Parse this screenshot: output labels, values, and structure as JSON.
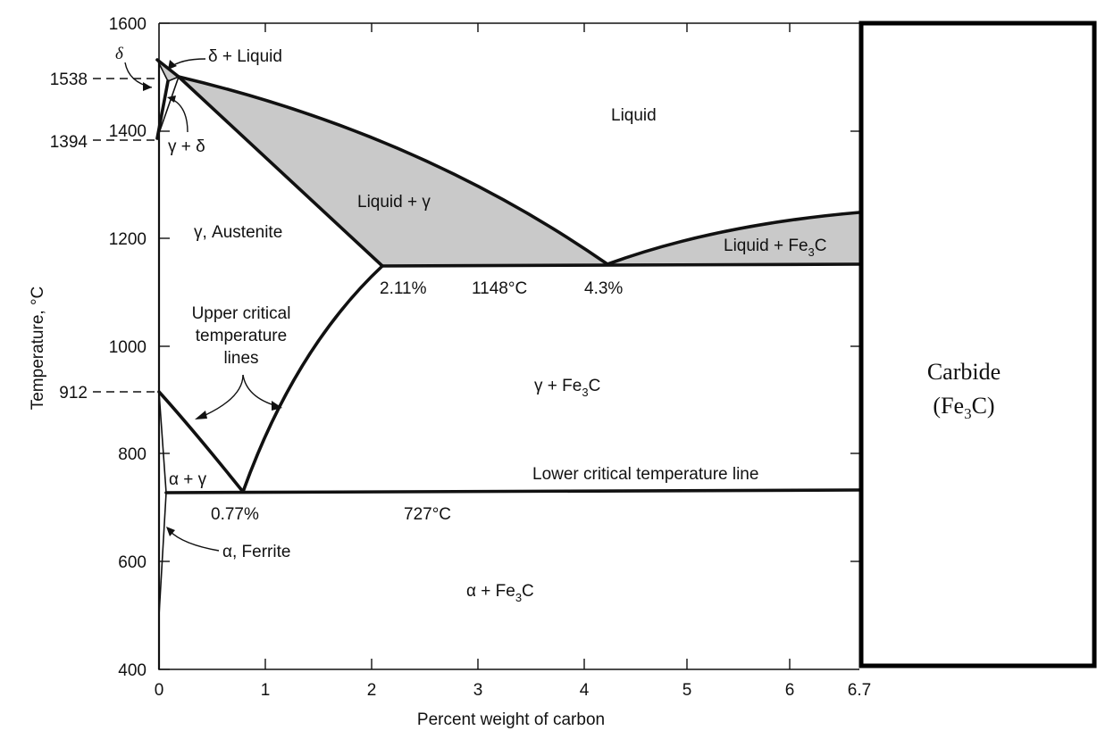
{
  "axes": {
    "y_label": "Temperature, °C",
    "x_label": "Percent weight of carbon",
    "y_ticks": [
      "1600",
      "1400",
      "1200",
      "1000",
      "800",
      "600",
      "400"
    ],
    "x_ticks": [
      "0",
      "1",
      "2",
      "3",
      "4",
      "5",
      "6",
      "6.7"
    ],
    "special_temps": [
      "1538",
      "1394",
      "912"
    ]
  },
  "regions": {
    "liquid": "Liquid",
    "liquid_gamma": "Liquid + γ",
    "liquid_fe3c_main": "Liquid + Fe",
    "liquid_fe3c_sub": "3",
    "liquid_fe3c_end": "C",
    "austenite": "γ, Austenite",
    "gamma_fe3c_main": "γ + Fe",
    "gamma_fe3c_sub": "3",
    "gamma_fe3c_end": "C",
    "alpha_gamma": "α + γ",
    "alpha_fe3c_main": "α + Fe",
    "alpha_fe3c_sub": "3",
    "alpha_fe3c_end": "C",
    "delta": "δ",
    "delta_liquid": "δ + Liquid",
    "gamma_delta": "γ + δ",
    "ferrite": "α, Ferrite"
  },
  "annotations": {
    "eutectic_comp1": "2.11%",
    "eutectic_temp": "1148°C",
    "eutectic_comp2": "4.3%",
    "eutectoid_comp": "0.77%",
    "eutectoid_temp": "727°C",
    "upper_critical_1": "Upper critical",
    "upper_critical_2": "temperature",
    "upper_critical_3": "lines",
    "lower_critical": "Lower critical temperature line"
  },
  "carbide_box": {
    "line1": "Carbide",
    "line2_open": "(Fe",
    "line2_sub": "3",
    "line2_close": "C)"
  }
}
